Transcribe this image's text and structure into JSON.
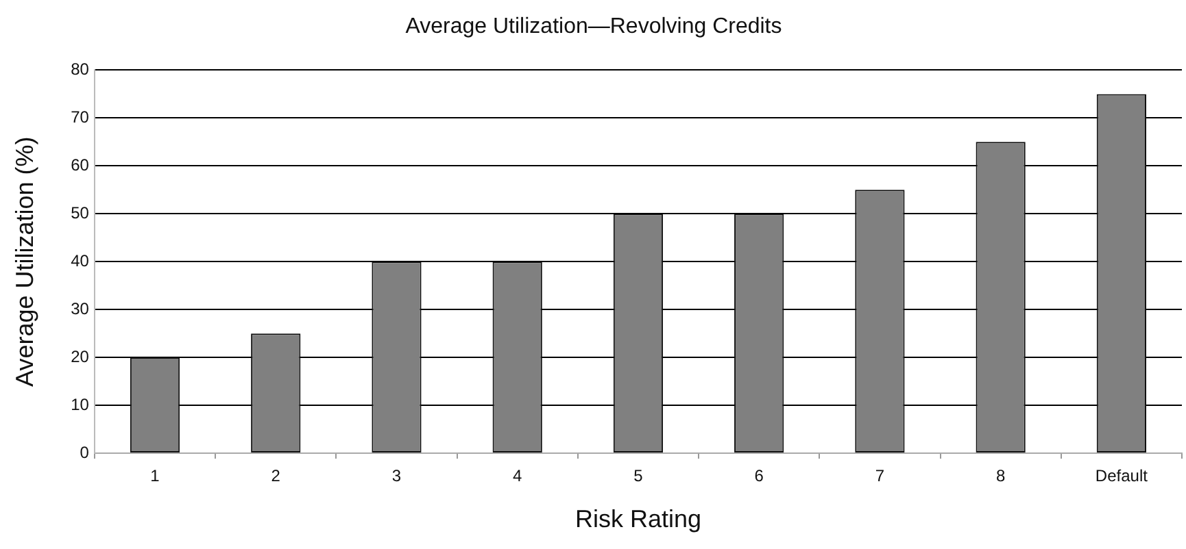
{
  "chart_data": {
    "type": "bar",
    "title": "Average Utilization—Revolving Credits",
    "xlabel": "Risk Rating",
    "ylabel": "Average Utilization (%)",
    "categories": [
      "1",
      "2",
      "3",
      "4",
      "5",
      "6",
      "7",
      "8",
      "Default"
    ],
    "values": [
      20,
      25,
      40,
      40,
      50,
      50,
      55,
      65,
      75
    ],
    "color": "#808080",
    "ylim": [
      0,
      80
    ],
    "yticks": [
      0,
      10,
      20,
      30,
      40,
      50,
      60,
      70,
      80
    ],
    "grid": "y",
    "legend": false
  }
}
